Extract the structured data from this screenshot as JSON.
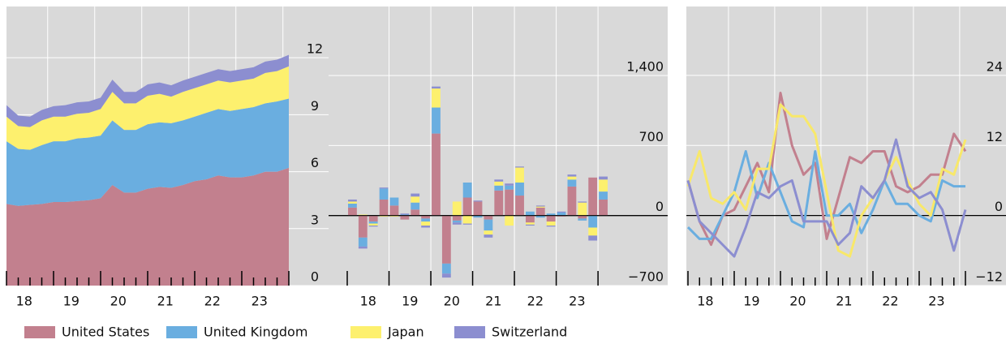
{
  "chart_data": [
    {
      "type": "stacked-area",
      "categories": [
        null,
        null,
        "18",
        null,
        null,
        null,
        "19",
        null,
        null,
        null,
        "20",
        null,
        null,
        null,
        "21",
        null,
        null,
        null,
        "22",
        null,
        null,
        null,
        "23",
        null,
        null
      ],
      "series": [
        {
          "name": "United States",
          "color": "#c2808e",
          "values": [
            4.3,
            4.2,
            4.25,
            4.3,
            4.4,
            4.4,
            4.45,
            4.5,
            4.6,
            5.3,
            4.9,
            4.9,
            5.1,
            5.2,
            5.15,
            5.3,
            5.5,
            5.6,
            5.8,
            5.7,
            5.7,
            5.8,
            6.0,
            6.0,
            6.2
          ]
        },
        {
          "name": "United Kingdom",
          "color": "#6aaee0",
          "values": [
            3.3,
            3.0,
            2.9,
            3.1,
            3.2,
            3.2,
            3.3,
            3.3,
            3.3,
            3.4,
            3.3,
            3.3,
            3.4,
            3.4,
            3.4,
            3.4,
            3.4,
            3.5,
            3.5,
            3.5,
            3.6,
            3.6,
            3.6,
            3.7,
            3.65
          ]
        },
        {
          "name": "Japan",
          "color": "#fdf06e",
          "values": [
            1.3,
            1.2,
            1.2,
            1.3,
            1.3,
            1.3,
            1.3,
            1.3,
            1.4,
            1.5,
            1.4,
            1.4,
            1.5,
            1.5,
            1.4,
            1.5,
            1.5,
            1.5,
            1.5,
            1.5,
            1.5,
            1.5,
            1.6,
            1.6,
            1.7
          ]
        },
        {
          "name": "Switzerland",
          "color": "#8c8ed0",
          "values": [
            0.6,
            0.55,
            0.55,
            0.55,
            0.55,
            0.6,
            0.6,
            0.6,
            0.6,
            0.65,
            0.6,
            0.6,
            0.6,
            0.6,
            0.6,
            0.6,
            0.6,
            0.6,
            0.6,
            0.6,
            0.6,
            0.6,
            0.6,
            0.6,
            0.6
          ]
        }
      ],
      "ylim": [
        0,
        14.7
      ],
      "yticks": [
        0,
        3,
        6,
        9,
        12
      ]
    },
    {
      "type": "stacked-bar",
      "categories": [
        null,
        null,
        "18",
        null,
        null,
        null,
        "19",
        null,
        null,
        null,
        "20",
        null,
        null,
        null,
        "21",
        null,
        null,
        null,
        "22",
        null,
        null,
        null,
        "23",
        null,
        null
      ],
      "series": [
        {
          "color": "#c2808e",
          "values": [
            80,
            -220,
            -60,
            160,
            100,
            -40,
            60,
            -30,
            820,
            -480,
            -50,
            180,
            140,
            -40,
            250,
            260,
            200,
            -70,
            80,
            -60,
            -10,
            290,
            -30,
            380,
            160
          ]
        },
        {
          "color": "#6aaee0",
          "values": [
            40,
            -90,
            -20,
            110,
            80,
            10,
            70,
            -30,
            260,
            -100,
            -20,
            150,
            -20,
            -110,
            50,
            40,
            130,
            40,
            -20,
            20,
            30,
            70,
            -20,
            -120,
            80
          ]
        },
        {
          "color": "#fdf06e",
          "values": [
            20,
            10,
            -20,
            -10,
            -10,
            0,
            60,
            -40,
            190,
            0,
            140,
            -80,
            0,
            -40,
            40,
            -100,
            150,
            -20,
            10,
            -40,
            0,
            30,
            130,
            -80,
            120
          ]
        },
        {
          "color": "#8c8ed0",
          "values": [
            20,
            -20,
            -10,
            10,
            0,
            10,
            30,
            -20,
            20,
            -40,
            -20,
            -10,
            10,
            -30,
            20,
            20,
            10,
            -10,
            10,
            -10,
            10,
            20,
            10,
            -50,
            30
          ]
        }
      ],
      "ylim": [
        -700,
        2090
      ],
      "yticks": [
        {
          "value": -700,
          "label": "−700"
        },
        0,
        700,
        {
          "value": 1400,
          "label": "1,400"
        }
      ]
    },
    {
      "type": "line",
      "categories": [
        null,
        null,
        "18",
        null,
        null,
        null,
        "19",
        null,
        null,
        null,
        "20",
        null,
        null,
        null,
        "21",
        null,
        null,
        null,
        "22",
        null,
        null,
        null,
        "23",
        null,
        null
      ],
      "series": [
        {
          "color": "#c2808e",
          "values": [
            6,
            -1,
            -5,
            0,
            1,
            5,
            9,
            4,
            21,
            12,
            7,
            9,
            -4,
            3,
            10,
            9,
            11,
            11,
            5,
            4,
            5,
            7,
            7,
            14,
            11
          ]
        },
        {
          "color": "#6aaee0",
          "values": [
            -2,
            -4,
            -4,
            0,
            4,
            11,
            3,
            9,
            4,
            -1,
            -2,
            11,
            0,
            0,
            2,
            -3,
            1,
            6,
            2,
            2,
            0,
            -1,
            6,
            5,
            5
          ]
        },
        {
          "color": "#f8e86a",
          "values": [
            5,
            11,
            3,
            2,
            4,
            1,
            8,
            8,
            19,
            17,
            17,
            14,
            4,
            -6,
            -7,
            0,
            3,
            6,
            10,
            6,
            2,
            0,
            8,
            7,
            13
          ]
        },
        {
          "color": "#8c8ed0",
          "values": [
            6,
            -1,
            -3,
            -5,
            -7,
            -2,
            4,
            3,
            5,
            6,
            -1,
            -1,
            -1,
            -5,
            -3,
            5,
            3,
            6,
            13,
            5,
            3,
            4,
            1,
            -6,
            1
          ]
        }
      ],
      "ylim": [
        -12,
        35.8
      ],
      "yticks": [
        {
          "value": -12,
          "label": "−12"
        },
        0,
        12,
        24
      ]
    }
  ]
}
